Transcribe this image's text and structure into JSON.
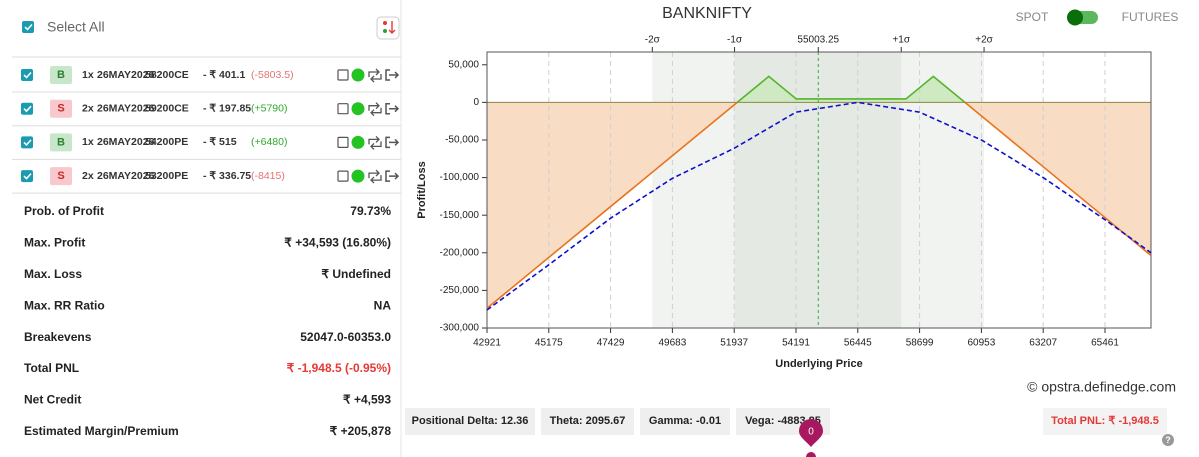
{
  "left_panel": {
    "select_all": "Select All",
    "legs": [
      {
        "side": "B",
        "qty": "1x",
        "expiry": "26MAY2026",
        "strike": "58200CE",
        "price": "- ₹ 401.1",
        "pnl": "(-5803.5)"
      },
      {
        "side": "S",
        "qty": "2x",
        "expiry": "26MAY2026",
        "strike": "59200CE",
        "price": "- ₹ 197.85",
        "pnl": "(+5790)"
      },
      {
        "side": "B",
        "qty": "1x",
        "expiry": "26MAY2026",
        "strike": "54200PE",
        "price": "- ₹ 515",
        "pnl": "(+6480)"
      },
      {
        "side": "S",
        "qty": "2x",
        "expiry": "26MAY2026",
        "strike": "53200PE",
        "price": "- ₹ 336.75",
        "pnl": "(-8415)"
      }
    ],
    "stats": [
      {
        "label": "Prob. of Profit",
        "value": "79.73%"
      },
      {
        "label": "Max. Profit",
        "value": "₹ +34,593 (16.80%)"
      },
      {
        "label": "Max. Loss",
        "value": "₹ Undefined"
      },
      {
        "label": "Max. RR Ratio",
        "value": "NA"
      },
      {
        "label": "Breakevens",
        "value": "52047.0-60353.0"
      },
      {
        "label": "Total PNL",
        "value": "₹ -1,948.5 (-0.95%)",
        "color": "#e53935"
      },
      {
        "label": "Net Credit",
        "value": "₹ +4,593"
      },
      {
        "label": "Estimated Margin/Premium",
        "value": "₹ +205,878"
      }
    ]
  },
  "header": {
    "title": "BANKNIFTY",
    "spot": "SPOT",
    "futures": "FUTURES"
  },
  "chart_data": {
    "type": "line",
    "xlabel": "Underlying Price",
    "ylabel": "Profit/Loss",
    "xlim": [
      42921,
      67139
    ],
    "ylim": [
      -300000,
      67000
    ],
    "xticks": [
      42921,
      45175,
      47429,
      49683,
      51937,
      54191,
      56445,
      58699,
      60953,
      63207,
      65461
    ],
    "yticks": [
      {
        "value": 50000,
        "label": "50,000"
      },
      0,
      {
        "value": -50000,
        "label": "-50,000"
      },
      {
        "value": -100000,
        "label": "-100,000"
      },
      {
        "value": -150000,
        "label": "-150,000"
      },
      {
        "value": -200000,
        "label": "-200,000"
      },
      {
        "value": -250000,
        "label": "-250,000"
      },
      {
        "value": -300000,
        "label": "-300,000"
      }
    ],
    "x2ticks": [
      {
        "value": 48950,
        "label": "-2σ"
      },
      {
        "value": 51950,
        "label": "-1σ"
      },
      {
        "value": 55003.25,
        "label": "55003.25"
      },
      {
        "value": 58030,
        "label": "+1σ"
      },
      {
        "value": 61050,
        "label": "+2σ"
      }
    ],
    "grid": true,
    "series": [
      {
        "color": "#e8731c",
        "positive_color": "#55b42a",
        "x": [
          42921,
          52047,
          53200,
          54200,
          58200,
          59200,
          60353,
          67139
        ],
        "values": [
          -273777,
          0,
          34593,
          4593,
          4593,
          34593,
          0,
          -203577
        ]
      },
      {
        "color": "#1010cc",
        "dashed": true,
        "x": [
          42921,
          45175,
          47429,
          49683,
          51937,
          54191,
          56445,
          58699,
          60953,
          63207,
          65461,
          67139
        ],
        "values": [
          -276000,
          -216000,
          -154000,
          -101000,
          -61000,
          -13000,
          0,
          -13000,
          -50000,
          -100000,
          -156000,
          -200000
        ]
      }
    ]
  },
  "greeks": [
    "Positional Delta: 12.36",
    "Theta: 2095.67",
    "Gamma: -0.01",
    "Vega: -4883.85"
  ],
  "total_pnl": "Total PNL: ₹ -1,948.5",
  "watermark": "© opstra.definedge.com",
  "marker": "0"
}
